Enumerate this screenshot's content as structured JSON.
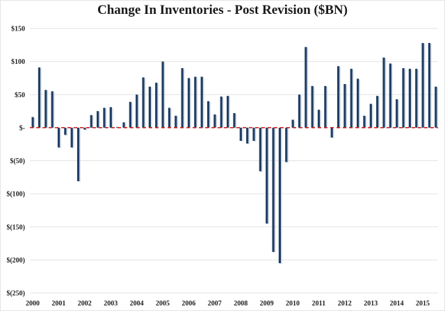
{
  "chart_data": {
    "type": "bar",
    "title": "Change In Inventories - Post Revision ($BN)",
    "xlabel": "",
    "ylabel": "",
    "ylim": [
      -250,
      150
    ],
    "yticks": [
      150,
      100,
      50,
      0,
      -50,
      -100,
      -150,
      -200,
      -250
    ],
    "ytick_labels": [
      "$150",
      "$100",
      "$50",
      "$-",
      "$(50)",
      "$(100)",
      "$(150)",
      "$(200)",
      "$(250)"
    ],
    "xtick_labels": [
      "2000",
      "2001",
      "2002",
      "2003",
      "2004",
      "2005",
      "2006",
      "2007",
      "2008",
      "2009",
      "2010",
      "2011",
      "2012",
      "2013",
      "2014",
      "2015"
    ],
    "grid": true,
    "zero_line": {
      "style": "dashed",
      "color": "#cc1111"
    },
    "bar_color": "#1f3f66",
    "categories": [
      "2000Q1",
      "2000Q2",
      "2000Q3",
      "2000Q4",
      "2001Q1",
      "2001Q2",
      "2001Q3",
      "2001Q4",
      "2002Q1",
      "2002Q2",
      "2002Q3",
      "2002Q4",
      "2003Q1",
      "2003Q2",
      "2003Q3",
      "2003Q4",
      "2004Q1",
      "2004Q2",
      "2004Q3",
      "2004Q4",
      "2005Q1",
      "2005Q2",
      "2005Q3",
      "2005Q4",
      "2006Q1",
      "2006Q2",
      "2006Q3",
      "2006Q4",
      "2007Q1",
      "2007Q2",
      "2007Q3",
      "2007Q4",
      "2008Q1",
      "2008Q2",
      "2008Q3",
      "2008Q4",
      "2009Q1",
      "2009Q2",
      "2009Q3",
      "2009Q4",
      "2010Q1",
      "2010Q2",
      "2010Q3",
      "2010Q4",
      "2011Q1",
      "2011Q2",
      "2011Q3",
      "2011Q4",
      "2012Q1",
      "2012Q2",
      "2012Q3",
      "2012Q4",
      "2013Q1",
      "2013Q2",
      "2013Q3",
      "2013Q4",
      "2014Q1",
      "2014Q2",
      "2014Q3",
      "2014Q4",
      "2015Q1",
      "2015Q2",
      "2015Q3"
    ],
    "series": [
      {
        "name": "Change In Inventories",
        "values": [
          16,
          91,
          57,
          55,
          -30,
          -11,
          -30,
          -81,
          -3,
          19,
          25,
          30,
          31,
          1,
          8,
          39,
          50,
          76,
          62,
          68,
          100,
          30,
          18,
          90,
          75,
          77,
          77,
          40,
          20,
          47,
          48,
          22,
          -20,
          -24,
          -20,
          -66,
          -145,
          -188,
          -205,
          -52,
          12,
          50,
          122,
          63,
          27,
          63,
          -15,
          93,
          66,
          89,
          74,
          18,
          36,
          48,
          106,
          97,
          43,
          90,
          89,
          89,
          128,
          128,
          62
        ]
      }
    ]
  }
}
